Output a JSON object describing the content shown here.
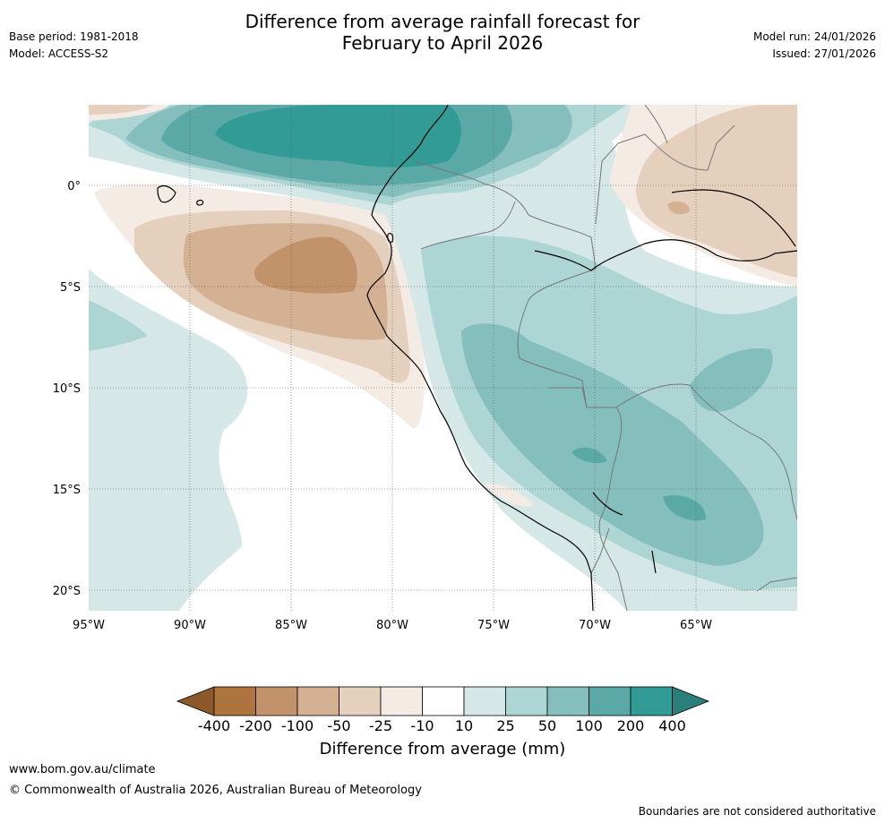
{
  "header": {
    "title_line1": "Difference from average rainfall forecast for",
    "title_line2": "February to April 2026",
    "base_period": "Base period: 1981-2018",
    "model": "Model: ACCESS-S2",
    "model_run": "Model run: 24/01/2026",
    "issued": "Issued: 27/01/2026"
  },
  "map": {
    "latitude_labels": [
      "0°",
      "5°S",
      "10°S",
      "15°S",
      "20°S"
    ],
    "longitude_labels": [
      "95°W",
      "90°W",
      "85°W",
      "80°W",
      "75°W",
      "70°W",
      "65°W"
    ],
    "extent": {
      "lon_min": -95,
      "lon_max": -60,
      "lat_min": -21,
      "lat_max": 4
    }
  },
  "colorbar": {
    "label": "Difference from average (mm)",
    "ticks": [
      "-400",
      "-200",
      "-100",
      "-50",
      "-25",
      "-10",
      "10",
      "25",
      "50",
      "100",
      "200",
      "400"
    ],
    "colors": [
      "#8c5a2a",
      "#ad7440",
      "#c2936a",
      "#d3b192",
      "#e5d0bd",
      "#f4ebe5",
      "#ffffff",
      "#d5e8e7",
      "#acd5d4",
      "#84bfbd",
      "#5aa9a7",
      "#339b96",
      "#2a7f7a"
    ]
  },
  "footer": {
    "link": "www.bom.gov.au/climate",
    "copyright": "© Commonwealth of Australia 2026, Australian Bureau of Meteorology",
    "note": "Boundaries are not considered authoritative"
  }
}
